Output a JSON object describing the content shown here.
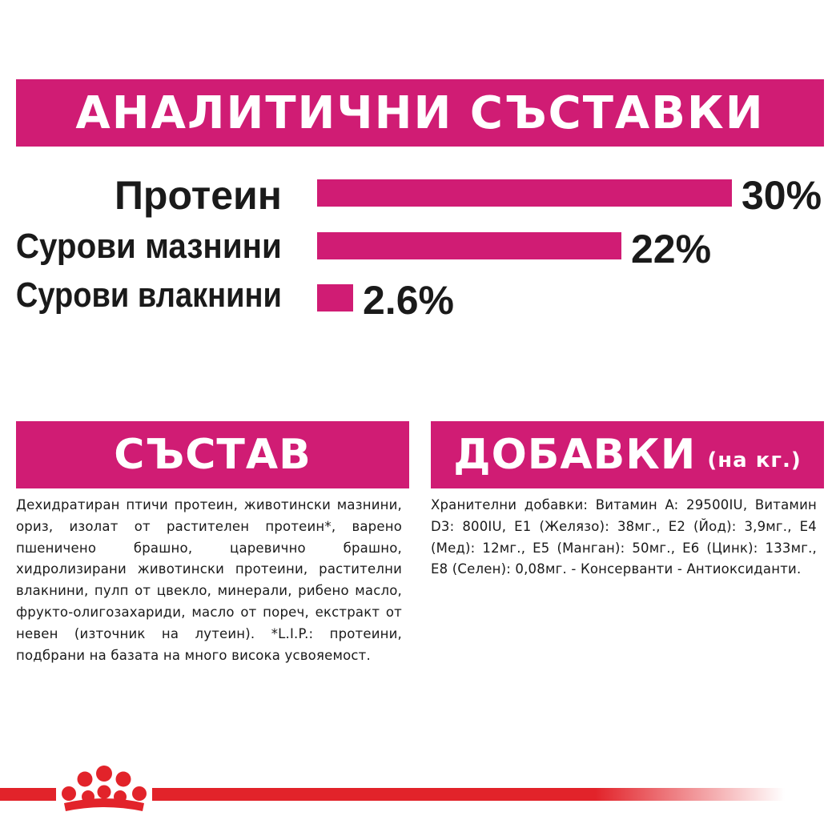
{
  "title": "АНАЛИТИЧНИ СЪСТАВКИ",
  "analytics": [
    {
      "label": "Протеин",
      "value_text": "30%",
      "value": 30
    },
    {
      "label": "Сурови мазнини",
      "value_text": "22%",
      "value": 22
    },
    {
      "label": "Сурови влакнини",
      "value_text": "2.6%",
      "value": 2.6
    }
  ],
  "sostav": {
    "heading": "СЪСТАВ",
    "text": "Дехидратиран птичи протеин, животински мазнини, ориз, изолат от растителен протеин*, варено пшеничено брашно, царевично брашно, хидролизирани животински протеини, растителни влакнини, пулп от цвекло, минерали, рибено масло, фрукто-олигозахариди, масло от пореч, екстракт от невен (източник на лутеин). *L.I.P.: протеини, подбрани на базата на много висока усвояемост."
  },
  "dobavki": {
    "heading": "ДОБАВКИ",
    "heading_small": "(на кг.)",
    "text": "Хранителни добавки: Витамин A: 29500IU, Витамин D3: 800IU, E1 (Желязо): 38мг., E2 (Йод): 3,9мг., E4 (Мед): 12мг., E5 (Манган): 50мг., E6 (Цинк): 133мг., E8 (Селен): 0,08мг. - Консерванти - Антиоксиданти."
  },
  "colors": {
    "accent": "#d01c74",
    "brand_red": "#e2232a",
    "text": "#1a1a1a"
  },
  "logo": "royal-canin-crown-icon"
}
